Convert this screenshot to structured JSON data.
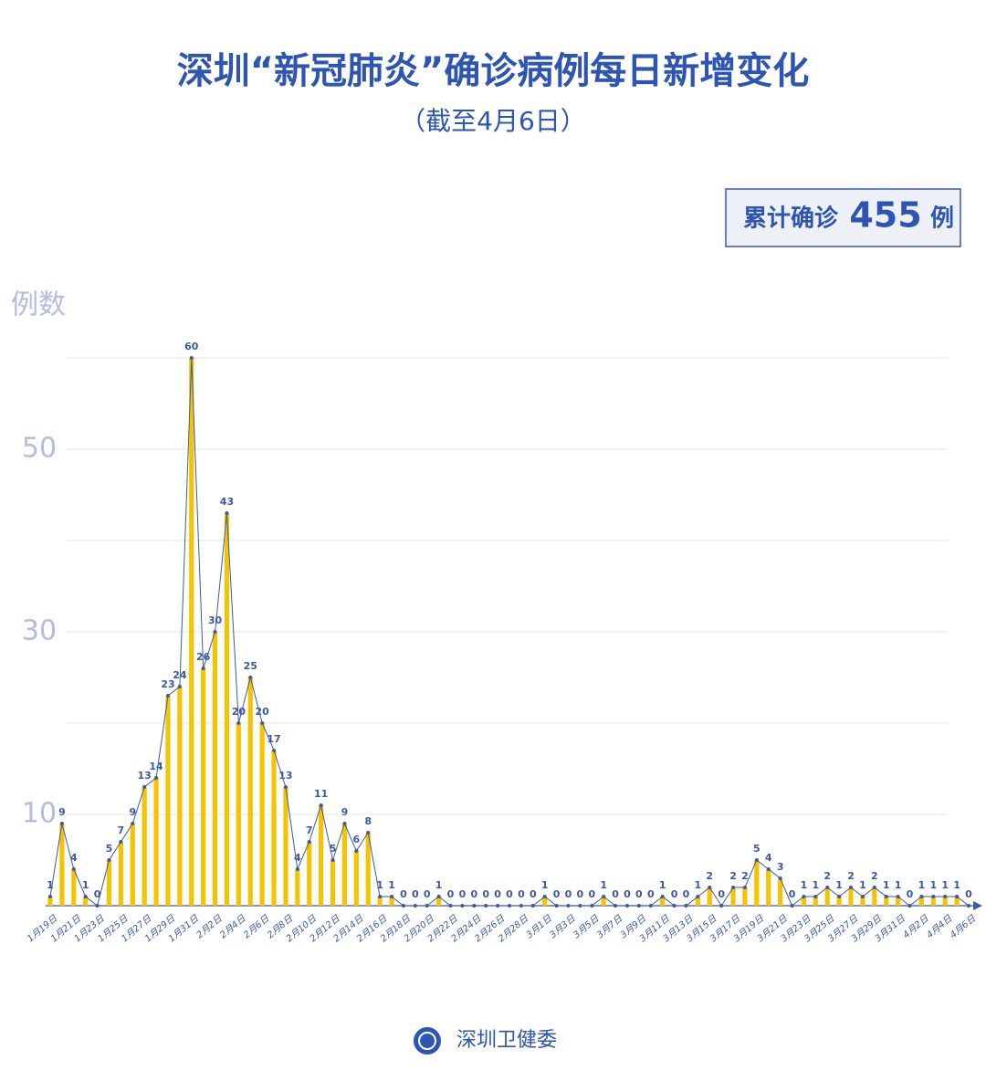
{
  "chart_data": {
    "type": "bar",
    "title": "深圳“新冠肺炎”确诊病例每日新增变化",
    "subtitle": "（截至4月6日）",
    "total": {
      "prefix": "累计确诊",
      "value": 455,
      "suffix": "例"
    },
    "y_label": "例数",
    "source": "深圳卫健委",
    "categories": [
      "1月19日",
      null,
      "1月21日",
      null,
      "1月23日",
      null,
      "1月25日",
      null,
      "1月27日",
      null,
      "1月29日",
      null,
      "1月31日",
      null,
      "2月2日",
      null,
      "2月4日",
      null,
      "2月6日",
      null,
      "2月8日",
      null,
      "2月10日",
      null,
      "2月12日",
      null,
      "2月14日",
      null,
      "2月16日",
      null,
      "2月18日",
      null,
      "2月20日",
      null,
      "2月22日",
      null,
      "2月24日",
      null,
      "2月26日",
      null,
      "2月28日",
      null,
      "3月1日",
      null,
      "3月3日",
      null,
      "3月5日",
      null,
      "3月7日",
      null,
      "3月9日",
      null,
      "3月11日",
      null,
      "3月13日",
      null,
      "3月15日",
      null,
      "3月17日",
      null,
      "3月19日",
      null,
      "3月21日",
      null,
      "3月23日",
      null,
      "3月25日",
      null,
      "3月27日",
      null,
      "3月29日",
      null,
      "3月31日",
      null,
      "4月2日",
      null,
      "4月4日",
      null,
      "4月6日"
    ],
    "values": [
      1,
      9,
      4,
      1,
      0,
      5,
      7,
      9,
      13,
      14,
      23,
      24,
      60,
      26,
      30,
      43,
      20,
      25,
      20,
      17,
      13,
      4,
      7,
      11,
      5,
      9,
      6,
      8,
      1,
      1,
      0,
      0,
      0,
      1,
      0,
      0,
      0,
      0,
      0,
      0,
      0,
      0,
      1,
      0,
      0,
      0,
      0,
      1,
      0,
      0,
      0,
      0,
      1,
      0,
      0,
      1,
      2,
      0,
      2,
      2,
      5,
      4,
      3,
      0,
      1,
      1,
      2,
      1,
      2,
      1,
      2,
      1,
      1,
      0,
      1,
      1,
      1,
      1,
      0
    ],
    "color": "#f5c400",
    "line": true,
    "line_color": "#3b59a6",
    "ylim": [
      0,
      60
    ],
    "yticks": [
      10,
      30,
      50
    ],
    "gridlines": [
      10,
      20,
      30,
      40,
      50,
      60
    ],
    "grid": true
  }
}
